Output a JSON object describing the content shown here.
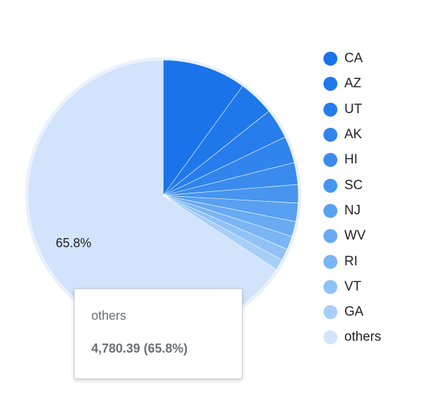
{
  "chart_data": {
    "type": "pie",
    "title": "",
    "categories": [
      "CA",
      "AZ",
      "UT",
      "AK",
      "HI",
      "SC",
      "NJ",
      "WV",
      "RI",
      "VT",
      "GA",
      "others"
    ],
    "values": [
      10.0,
      4.3,
      3.6,
      3.2,
      2.6,
      2.2,
      2.2,
      1.8,
      1.6,
      1.4,
      1.3,
      65.8
    ],
    "colors": [
      "#1a73e8",
      "#1f78e9",
      "#267deb",
      "#3084ec",
      "#3a8bed",
      "#4795ef",
      "#58a0f1",
      "#69aaf2",
      "#7ab5f4",
      "#90c2f6",
      "#a6cff8",
      "#d2e3fc"
    ],
    "legend_position": "right",
    "data_labels": {
      "others": "65.8%"
    },
    "tooltip": {
      "label": "others",
      "value": "4,780.39 (65.8%)"
    }
  }
}
